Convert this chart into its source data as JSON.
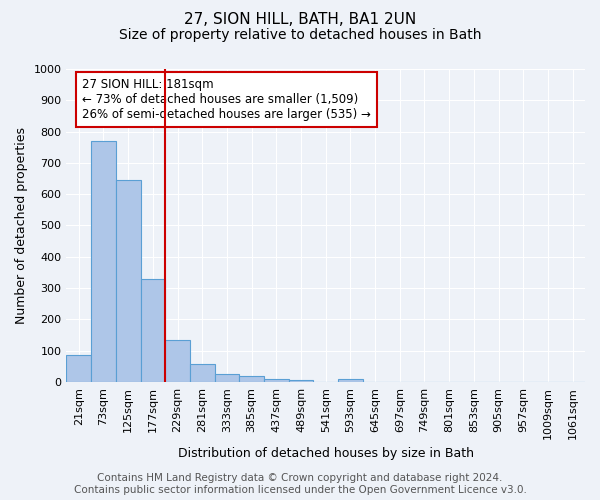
{
  "title": "27, SION HILL, BATH, BA1 2UN",
  "subtitle": "Size of property relative to detached houses in Bath",
  "xlabel": "Distribution of detached houses by size in Bath",
  "ylabel": "Number of detached properties",
  "bar_values": [
    85,
    770,
    645,
    330,
    135,
    58,
    25,
    18,
    10,
    7,
    0,
    10,
    0,
    0,
    0,
    0,
    0,
    0,
    0,
    0,
    0
  ],
  "bar_labels": [
    "21sqm",
    "73sqm",
    "125sqm",
    "177sqm",
    "229sqm",
    "281sqm",
    "333sqm",
    "385sqm",
    "437sqm",
    "489sqm",
    "541sqm",
    "593sqm",
    "645sqm",
    "697sqm",
    "749sqm",
    "801sqm",
    "853sqm",
    "905sqm",
    "957sqm",
    "1009sqm",
    "1061sqm"
  ],
  "bar_color": "#aec6e8",
  "bar_edgecolor": "#5a9fd4",
  "bar_linewidth": 0.8,
  "vline_x": 3.5,
  "vline_color": "#cc0000",
  "vline_linewidth": 1.5,
  "ylim": [
    0,
    1000
  ],
  "yticks": [
    0,
    100,
    200,
    300,
    400,
    500,
    600,
    700,
    800,
    900,
    1000
  ],
  "annotation_text": "27 SION HILL: 181sqm\n← 73% of detached houses are smaller (1,509)\n26% of semi-detached houses are larger (535) →",
  "footer_text": "Contains HM Land Registry data © Crown copyright and database right 2024.\nContains public sector information licensed under the Open Government Licence v3.0.",
  "background_color": "#eef2f8",
  "plot_background_color": "#eef2f8",
  "grid_color": "#ffffff",
  "title_fontsize": 11,
  "subtitle_fontsize": 10,
  "axis_label_fontsize": 9,
  "tick_fontsize": 8,
  "annotation_fontsize": 8.5,
  "footer_fontsize": 7.5
}
